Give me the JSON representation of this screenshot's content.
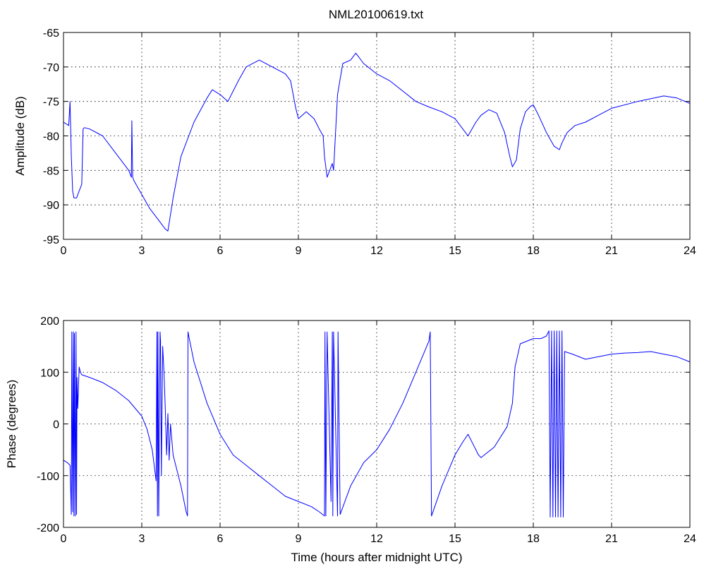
{
  "figure": {
    "title": "NML20100619.txt",
    "line_color": "#0000ff"
  },
  "chart_data": [
    {
      "type": "line",
      "name": "amplitude-panel",
      "title": "NML20100619.txt",
      "xlabel": "",
      "ylabel": "Amplitude (dB)",
      "xlim": [
        0,
        24
      ],
      "ylim": [
        -95,
        -65
      ],
      "xticks": [
        0,
        3,
        6,
        9,
        12,
        15,
        18,
        21,
        24
      ],
      "yticks": [
        -95,
        -90,
        -85,
        -80,
        -75,
        -70,
        -65
      ],
      "grid": true,
      "series": [
        {
          "color": "#0000ff",
          "x": [
            0,
            0.2,
            0.25,
            0.3,
            0.35,
            0.4,
            0.5,
            0.6,
            0.7,
            0.75,
            0.8,
            1.0,
            1.5,
            2.0,
            2.5,
            2.6,
            2.62,
            2.65,
            2.7,
            3.0,
            3.3,
            3.5,
            3.7,
            3.9,
            4.0,
            4.2,
            4.5,
            5.0,
            5.5,
            5.7,
            6.0,
            6.3,
            6.7,
            7.0,
            7.5,
            8.0,
            8.5,
            8.7,
            8.9,
            9.0,
            9.3,
            9.6,
            9.8,
            9.95,
            10.0,
            10.1,
            10.2,
            10.3,
            10.35,
            10.5,
            10.7,
            11.0,
            11.2,
            11.5,
            12.0,
            12.5,
            13.0,
            13.5,
            14.0,
            14.5,
            15.0,
            15.3,
            15.5,
            15.8,
            16.0,
            16.3,
            16.6,
            16.9,
            17.1,
            17.2,
            17.35,
            17.5,
            17.7,
            17.9,
            18.0,
            18.2,
            18.5,
            18.8,
            19.0,
            19.1,
            19.3,
            19.6,
            20.0,
            20.5,
            21.0,
            22.0,
            23.0,
            23.5,
            24.0
          ],
          "y": [
            -78,
            -78.5,
            -75,
            -83,
            -88,
            -89,
            -89,
            -88,
            -87,
            -79,
            -78.8,
            -79,
            -80,
            -82.5,
            -85,
            -86,
            -77.8,
            -86,
            -86.5,
            -88.5,
            -90.5,
            -91.5,
            -92.5,
            -93.5,
            -93.8,
            -89,
            -83,
            -78,
            -74.5,
            -73.3,
            -74,
            -75,
            -72,
            -70,
            -69,
            -70,
            -71,
            -72,
            -76,
            -77.5,
            -76.5,
            -77.5,
            -79,
            -80,
            -83,
            -86,
            -85,
            -84,
            -85,
            -74,
            -69.5,
            -69,
            -68,
            -69.5,
            -71,
            -72,
            -73.5,
            -75,
            -75.8,
            -76.5,
            -77.5,
            -79,
            -80,
            -78,
            -77,
            -76.2,
            -76.7,
            -79.5,
            -83,
            -84.5,
            -83.5,
            -79,
            -76.5,
            -75.7,
            -75.5,
            -77,
            -79.5,
            -81.5,
            -82,
            -81,
            -79.5,
            -78.5,
            -78,
            -77,
            -76,
            -75,
            -74.2,
            -74.5,
            -75.3
          ]
        }
      ]
    },
    {
      "type": "line",
      "name": "phase-panel",
      "title": "",
      "xlabel": "Time (hours after midnight UTC)",
      "ylabel": "Phase (degrees)",
      "xlim": [
        0,
        24
      ],
      "ylim": [
        -200,
        200
      ],
      "xticks": [
        0,
        3,
        6,
        9,
        12,
        15,
        18,
        21,
        24
      ],
      "yticks": [
        -200,
        -100,
        0,
        100,
        200
      ],
      "grid": true,
      "series": [
        {
          "color": "#0000ff",
          "x": [
            0,
            0.15,
            0.25,
            0.3,
            0.32,
            0.35,
            0.38,
            0.4,
            0.42,
            0.45,
            0.48,
            0.5,
            0.52,
            0.55,
            0.6,
            0.65,
            0.7,
            1.0,
            1.5,
            2.0,
            2.5,
            3.0,
            3.2,
            3.4,
            3.55,
            3.58,
            3.6,
            3.62,
            3.65,
            3.7,
            3.72,
            3.75,
            3.8,
            3.85,
            3.9,
            3.95,
            4.0,
            4.05,
            4.1,
            4.2,
            4.5,
            4.7,
            4.75,
            4.77,
            4.8,
            5.0,
            5.5,
            6.0,
            6.5,
            7.0,
            7.5,
            8.0,
            8.5,
            9.0,
            9.5,
            9.8,
            10.0,
            10.02,
            10.05,
            10.1,
            10.25,
            10.3,
            10.32,
            10.35,
            10.5,
            10.52,
            10.6,
            11.0,
            11.5,
            12.0,
            12.5,
            13.0,
            13.5,
            14.0,
            14.05,
            14.1,
            14.5,
            15.0,
            15.3,
            15.5,
            15.7,
            15.9,
            16.0,
            16.5,
            17.0,
            17.2,
            17.3,
            17.5,
            18.0,
            18.3,
            18.5,
            18.6,
            18.65,
            18.7,
            18.75,
            18.8,
            18.85,
            18.9,
            18.95,
            19.0,
            19.05,
            19.1,
            19.15,
            19.2,
            19.5,
            20.0,
            20.5,
            21.0,
            21.5,
            22.0,
            22.5,
            23.0,
            23.5,
            24.0
          ],
          "y": [
            -70,
            -75,
            -80,
            -175,
            178,
            -170,
            178,
            -178,
            175,
            -178,
            178,
            -175,
            90,
            30,
            110,
            100,
            95,
            90,
            80,
            65,
            45,
            15,
            -10,
            -50,
            -110,
            178,
            -178,
            178,
            -178,
            178,
            160,
            -100,
            150,
            100,
            30,
            -60,
            20,
            -70,
            0,
            -60,
            -120,
            -170,
            -178,
            178,
            170,
            120,
            40,
            -20,
            -60,
            -80,
            -100,
            -120,
            -140,
            -150,
            -160,
            -170,
            -178,
            178,
            -178,
            178,
            -150,
            178,
            -178,
            178,
            -178,
            178,
            -175,
            -120,
            -75,
            -50,
            -10,
            40,
            100,
            160,
            178,
            -178,
            -120,
            -60,
            -35,
            -20,
            -40,
            -60,
            -65,
            -45,
            -5,
            40,
            110,
            155,
            165,
            165,
            170,
            180,
            -180,
            180,
            -180,
            180,
            -180,
            180,
            -180,
            180,
            -180,
            180,
            -180,
            140,
            135,
            125,
            130,
            135,
            137,
            138,
            140,
            135,
            130,
            120
          ]
        }
      ]
    }
  ]
}
